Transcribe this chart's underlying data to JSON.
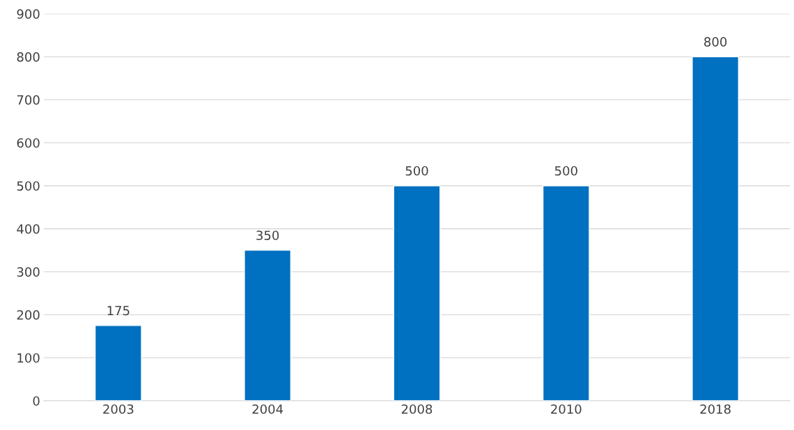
{
  "chart_data": {
    "type": "bar",
    "categories": [
      "2003",
      "2004",
      "2008",
      "2010",
      "2018"
    ],
    "values": [
      175,
      350,
      500,
      500,
      800
    ],
    "color": "#0070c0",
    "ylim": [
      0,
      900
    ],
    "yticks": [
      0,
      100,
      200,
      300,
      400,
      500,
      600,
      700,
      800,
      900
    ],
    "grid": "y",
    "data_labels": true
  }
}
